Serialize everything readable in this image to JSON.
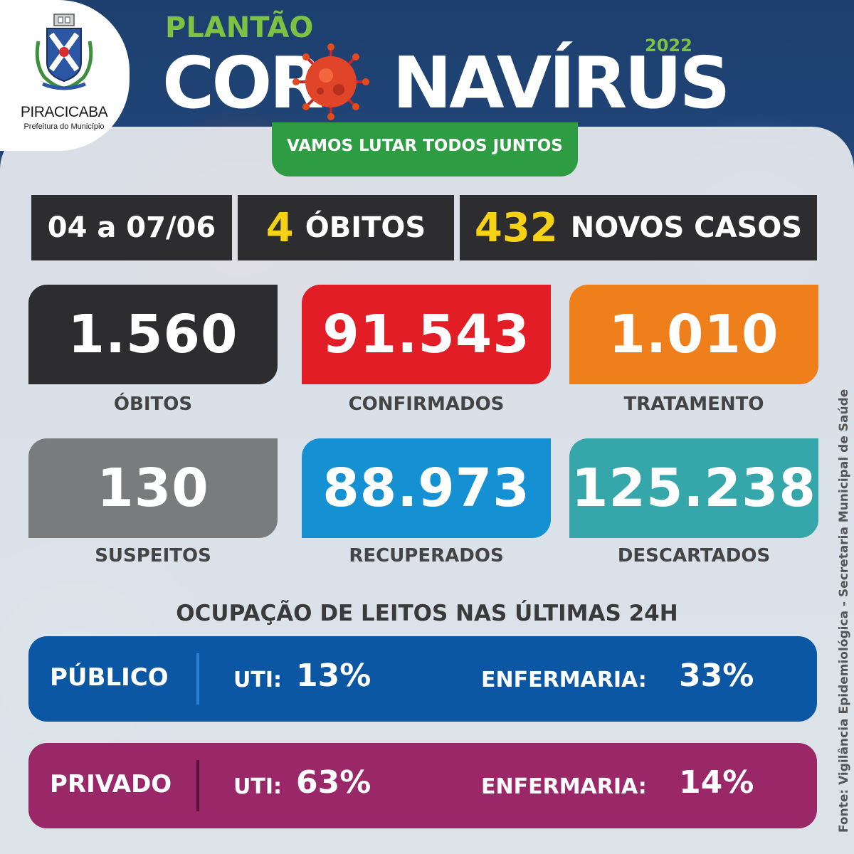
{
  "header": {
    "org_name": "PIRACICABA",
    "org_sub": "Prefeitura do Município",
    "kicker": "PLANTÃO",
    "title_left": "COR",
    "title_right": "NAVÍRUS",
    "year": "2022",
    "slogan": "VAMOS LUTAR TODOS JUNTOS"
  },
  "summary": {
    "period": "04 a 07/06",
    "deaths_count": "4",
    "deaths_label": "ÓBITOS",
    "new_cases_count": "432",
    "new_cases_label": "NOVOS CASOS"
  },
  "stats": [
    {
      "value": "1.560",
      "label": "ÓBITOS",
      "color": "#2d2d2f"
    },
    {
      "value": "91.543",
      "label": "CONFIRMADOS",
      "color": "#e21d26"
    },
    {
      "value": "1.010",
      "label": "TRATAMENTO",
      "color": "#ef7f1a"
    },
    {
      "value": "130",
      "label": "SUSPEITOS",
      "color": "#7a7b7d"
    },
    {
      "value": "88.973",
      "label": "RECUPERADOS",
      "color": "#1590d3"
    },
    {
      "value": "125.238",
      "label": "DESCARTADOS",
      "color": "#35a7aa"
    }
  ],
  "beds": {
    "title": "OCUPAÇÃO DE LEITOS NAS ÚLTIMAS 24H",
    "rows": [
      {
        "category": "PÚBLICO",
        "uti_label": "UTI:",
        "uti_value": "13%",
        "ward_label": "ENFERMARIA:",
        "ward_value": "33%",
        "color": "#0c57a4"
      },
      {
        "category": "PRIVADO",
        "uti_label": "UTI:",
        "uti_value": "63%",
        "ward_label": "ENFERMARIA:",
        "ward_value": "14%",
        "color": "#9a2767"
      }
    ]
  },
  "source": "Fonte: Vigilância Epidemiológica - Secretaria Municipal de Saúde"
}
